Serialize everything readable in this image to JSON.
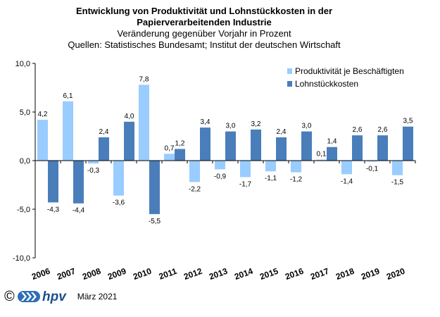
{
  "header": {
    "title_line1": "Entwicklung von Produktivität und Lohnstückkosten  in der",
    "title_line2": "Papierverarbeitenden Industrie",
    "subtitle": "Veränderung  gegenüber  Vorjahr  in Prozent",
    "source": "Quellen: Statistisches Bundesamt; Institut der deutschen Wirtschaft"
  },
  "footer": {
    "copyright": "©",
    "logo_text": "hpv",
    "date": "März 2021"
  },
  "colors": {
    "produktivitaet": "#99ccff",
    "lohnstueckkosten": "#4a7ebb"
  },
  "chart_data": {
    "type": "bar",
    "categories": [
      "2006",
      "2007",
      "2008",
      "2009",
      "2010",
      "2011",
      "2012",
      "2013",
      "2014",
      "2015",
      "2016",
      "2017",
      "2018",
      "2019",
      "2020"
    ],
    "series": [
      {
        "name": "Produktivität je Beschäftigten",
        "values": [
          4.2,
          6.1,
          -0.3,
          -3.6,
          7.8,
          0.7,
          -2.2,
          -0.9,
          -1.7,
          -1.1,
          -1.2,
          0.1,
          -1.4,
          -0.1,
          -1.5
        ],
        "labels": [
          "4,2",
          "6,1",
          "-0,3",
          "-3,6",
          "7,8",
          "0,7",
          "-2,2",
          "-0,9",
          "-1,7",
          "-1,1",
          "-1,2",
          "0,1",
          "-1,4",
          "-0,1",
          "-1,5"
        ]
      },
      {
        "name": "Lohnstückkosten",
        "values": [
          -4.3,
          -4.4,
          2.4,
          4.0,
          -5.5,
          1.2,
          3.4,
          3.0,
          3.2,
          2.4,
          3.0,
          1.4,
          2.6,
          2.6,
          3.5
        ],
        "labels": [
          "-4,3",
          "-4,4",
          "2,4",
          "4,0",
          "-5,5",
          "1,2",
          "3,4",
          "3,0",
          "3,2",
          "2,4",
          "3,0",
          "1,4",
          "2,6",
          "2,6",
          "3,5"
        ]
      }
    ],
    "ylim": [
      -10,
      10
    ],
    "yticks": [
      10,
      5,
      0,
      -5,
      -10
    ],
    "ytick_labels": [
      "10,0",
      "5,0",
      "0,0",
      "-5,0",
      "-10,0"
    ],
    "legend_position": "top-right"
  }
}
